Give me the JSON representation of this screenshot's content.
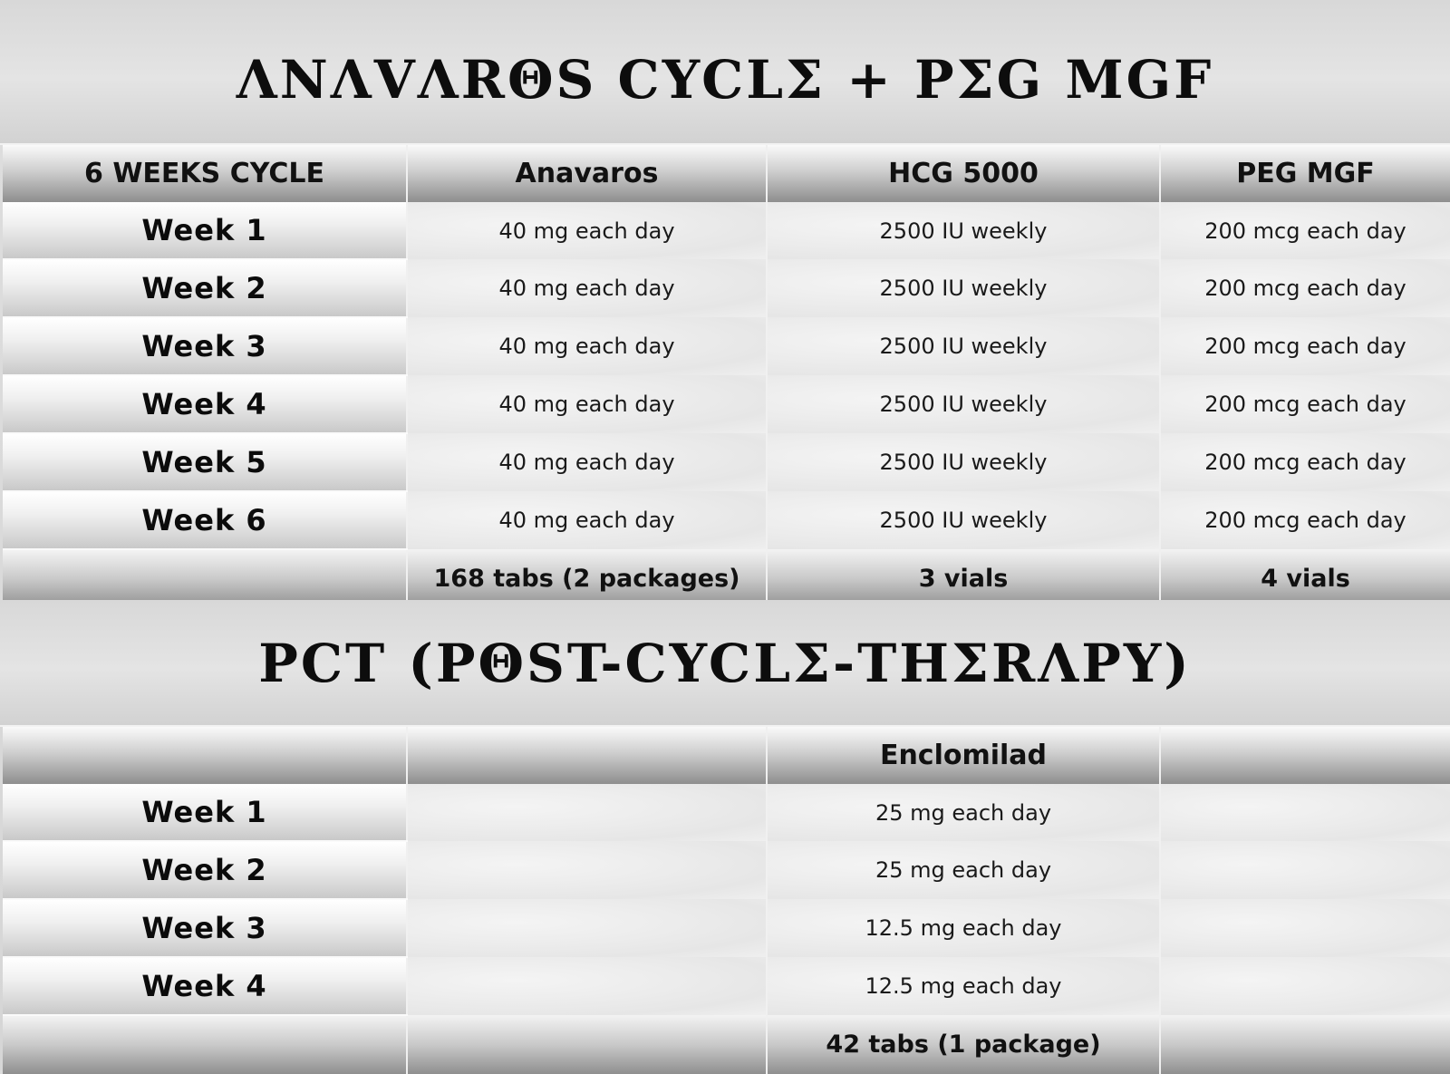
{
  "cycle": {
    "title": "ΛΝΛVΛRΘS CYCLΣ + PΣG MGF",
    "headers": [
      "6 WEEKS CYCLE",
      "Anavaros",
      "HCG 5000",
      "PEG MGF"
    ],
    "rows": [
      {
        "week": "Week  1",
        "anavaros": "40 mg each day",
        "hcg": "2500 IU weekly",
        "peg": "200 mcg each day"
      },
      {
        "week": "Week  2",
        "anavaros": "40 mg each day",
        "hcg": "2500 IU weekly",
        "peg": "200 mcg each day"
      },
      {
        "week": "Week  3",
        "anavaros": "40 mg each day",
        "hcg": "2500 IU weekly",
        "peg": "200 mcg each day"
      },
      {
        "week": "Week  4",
        "anavaros": "40 mg each day",
        "hcg": "2500 IU weekly",
        "peg": "200 mcg each day"
      },
      {
        "week": "Week  5",
        "anavaros": "40 mg each day",
        "hcg": "2500 IU weekly",
        "peg": "200 mcg each day"
      },
      {
        "week": "Week  6",
        "anavaros": "40 mg each day",
        "hcg": "2500 IU weekly",
        "peg": "200 mcg each day"
      }
    ],
    "totals": {
      "anavaros": "168 tabs (2 packages)",
      "hcg": "3 vials",
      "peg": "4 vials"
    }
  },
  "pct": {
    "title": "PCT (PΘST-CYCLΣ-THΣRΛPY)",
    "headers": [
      "",
      "",
      "Enclomilad",
      ""
    ],
    "rows": [
      {
        "week": "Week  1",
        "enclomilad": "25 mg each day"
      },
      {
        "week": "Week  2",
        "enclomilad": "25 mg each day"
      },
      {
        "week": "Week  3",
        "enclomilad": "12.5 mg each day"
      },
      {
        "week": "Week  4",
        "enclomilad": "12.5 mg each day"
      }
    ],
    "totals": {
      "enclomilad": "42 tabs (1 package)"
    }
  }
}
